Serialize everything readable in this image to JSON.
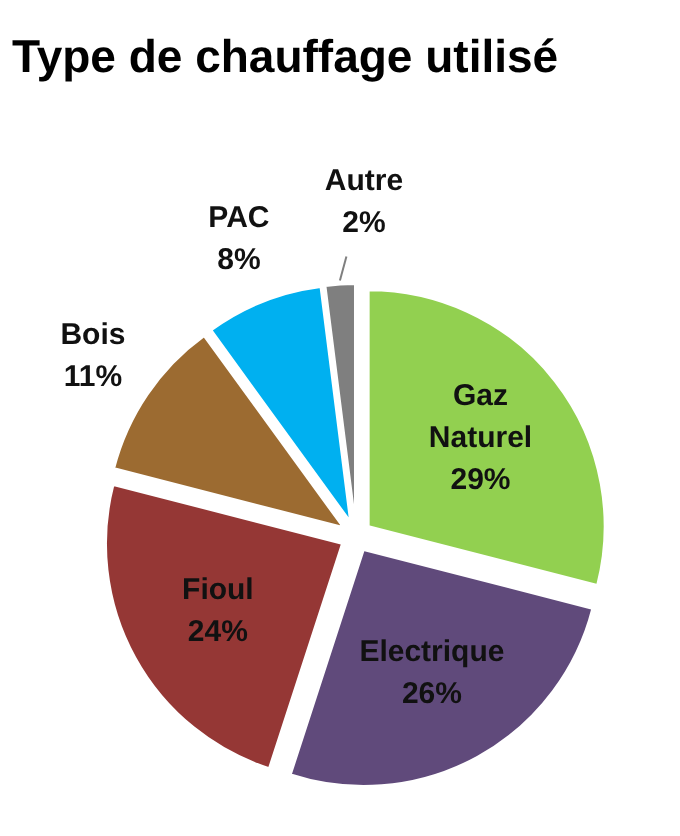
{
  "chart_data": {
    "type": "pie",
    "title": "Type de chauffage utilisé",
    "categories": [
      "Gaz Naturel",
      "Electrique",
      "Fioul",
      "Bois",
      "PAC",
      "Autre"
    ],
    "values": [
      29,
      26,
      24,
      11,
      8,
      2
    ],
    "value_labels": [
      "29%",
      "26%",
      "24%",
      "11%",
      "8%",
      "2%"
    ],
    "colors": [
      "#92d050",
      "#604a7b",
      "#953735",
      "#9c6b31",
      "#00b0f0",
      "#7f7f7f"
    ]
  }
}
